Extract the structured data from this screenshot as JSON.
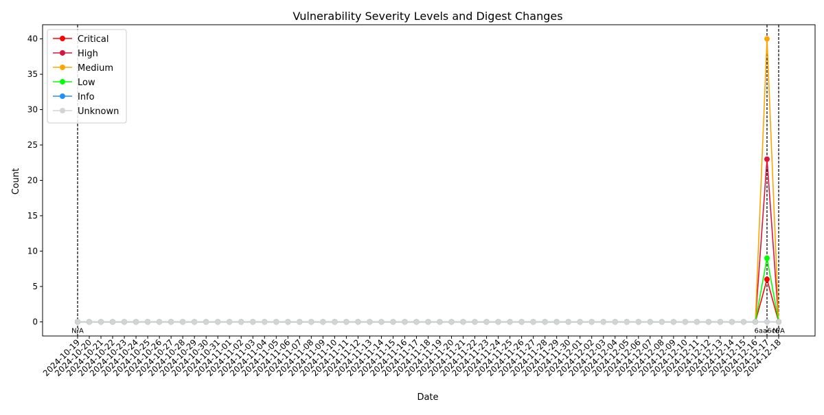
{
  "chart_data": {
    "type": "line",
    "title": "Vulnerability Severity Levels and Digest Changes",
    "xlabel": "Date",
    "ylabel": "Count",
    "ylim": [
      -2,
      42
    ],
    "yticks": [
      0,
      5,
      10,
      15,
      20,
      25,
      30,
      35,
      40
    ],
    "grid": false,
    "legend_position": "upper-left",
    "x": [
      "2024-10-19",
      "2024-10-20",
      "2024-10-21",
      "2024-10-22",
      "2024-10-23",
      "2024-10-24",
      "2024-10-25",
      "2024-10-26",
      "2024-10-27",
      "2024-10-28",
      "2024-10-29",
      "2024-10-30",
      "2024-10-31",
      "2024-11-01",
      "2024-11-02",
      "2024-11-03",
      "2024-11-04",
      "2024-11-05",
      "2024-11-06",
      "2024-11-07",
      "2024-11-08",
      "2024-11-09",
      "2024-11-10",
      "2024-11-11",
      "2024-11-12",
      "2024-11-13",
      "2024-11-14",
      "2024-11-15",
      "2024-11-16",
      "2024-11-17",
      "2024-11-18",
      "2024-11-19",
      "2024-11-20",
      "2024-11-21",
      "2024-11-22",
      "2024-11-23",
      "2024-11-24",
      "2024-11-25",
      "2024-11-26",
      "2024-11-27",
      "2024-11-28",
      "2024-11-29",
      "2024-11-30",
      "2024-12-01",
      "2024-12-02",
      "2024-12-03",
      "2024-12-04",
      "2024-12-05",
      "2024-12-06",
      "2024-12-07",
      "2024-12-08",
      "2024-12-09",
      "2024-12-10",
      "2024-12-11",
      "2024-12-12",
      "2024-12-13",
      "2024-12-14",
      "2024-12-15",
      "2024-12-16",
      "2024-12-17",
      "2024-12-18"
    ],
    "series": [
      {
        "name": "Critical",
        "color": "#ff0000",
        "points": {
          "2024-12-17": 6
        }
      },
      {
        "name": "High",
        "color": "#dc143c",
        "points": {
          "2024-12-17": 23
        }
      },
      {
        "name": "Medium",
        "color": "#ffa500",
        "points": {
          "2024-12-17": 40
        }
      },
      {
        "name": "Low",
        "color": "#00ff00",
        "points": {
          "2024-12-17": 9
        }
      },
      {
        "name": "Info",
        "color": "#1e90ff",
        "points": {}
      },
      {
        "name": "Unknown",
        "color": "#d3d3d3",
        "points": {}
      }
    ],
    "digest_changes": [
      {
        "date": "2024-10-19",
        "label": "N/A"
      },
      {
        "date": "2024-12-17",
        "label": "6aa6c6"
      },
      {
        "date": "2024-12-18",
        "label": "N/A"
      }
    ]
  }
}
